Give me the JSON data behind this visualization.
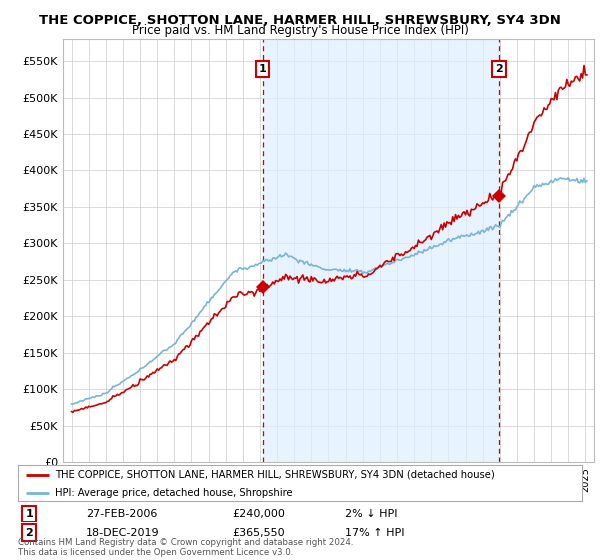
{
  "title": "THE COPPICE, SHOTTON LANE, HARMER HILL, SHREWSBURY, SY4 3DN",
  "subtitle": "Price paid vs. HM Land Registry's House Price Index (HPI)",
  "legend_line1": "THE COPPICE, SHOTTON LANE, HARMER HILL, SHREWSBURY, SY4 3DN (detached house)",
  "legend_line2": "HPI: Average price, detached house, Shropshire",
  "footer": "Contains HM Land Registry data © Crown copyright and database right 2024.\nThis data is licensed under the Open Government Licence v3.0.",
  "sale1_date": "27-FEB-2006",
  "sale1_price": "£240,000",
  "sale1_hpi": "2% ↓ HPI",
  "sale1_x": 2006.15,
  "sale1_y": 240000,
  "sale2_date": "18-DEC-2019",
  "sale2_price": "£365,550",
  "sale2_hpi": "17% ↑ HPI",
  "sale2_x": 2019.96,
  "sale2_y": 365550,
  "hpi_color": "#7ab4d8",
  "price_color": "#cc0000",
  "shade_color": "#ddeeff",
  "dashed_color": "#cc0000",
  "ylim_min": 0,
  "ylim_max": 580000,
  "yticks": [
    0,
    50000,
    100000,
    150000,
    200000,
    250000,
    300000,
    350000,
    400000,
    450000,
    500000,
    550000
  ],
  "xlim_min": 1994.5,
  "xlim_max": 2025.5,
  "bg_color": "#ffffff",
  "grid_color": "#cccccc"
}
